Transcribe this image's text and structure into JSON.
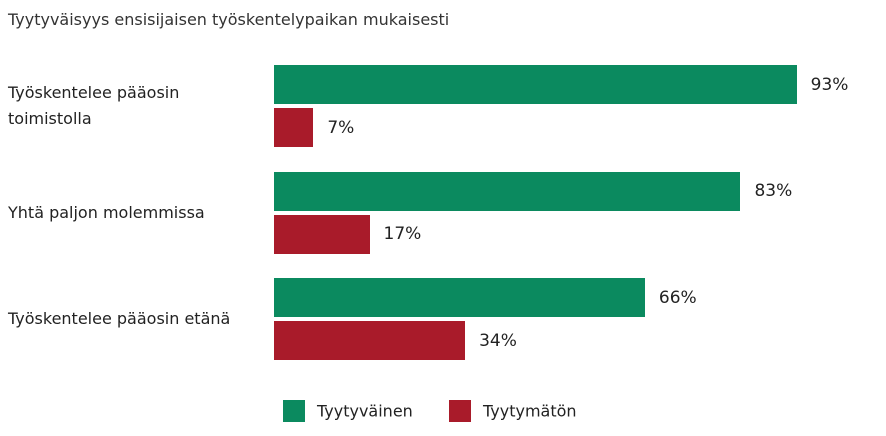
{
  "chart_data": {
    "type": "bar",
    "orientation": "horizontal",
    "title": "Tyytyväisyys ensisijaisen työskentelypaikan mukaisesti",
    "categories": [
      "Työskentelee pääosin toimistolla",
      "Yhtä paljon molemmissa",
      "Työskentelee pääosin etänä"
    ],
    "series": [
      {
        "name": "Tyytyväinen",
        "color": "#0b8a5f",
        "values": [
          93,
          83,
          66
        ],
        "value_labels": [
          "93%",
          "83%",
          "66%"
        ]
      },
      {
        "name": "Tyytymätön",
        "color": "#a91b2a",
        "values": [
          7,
          17,
          34
        ],
        "value_labels": [
          "7%",
          "17%",
          "34%"
        ]
      }
    ]
  }
}
